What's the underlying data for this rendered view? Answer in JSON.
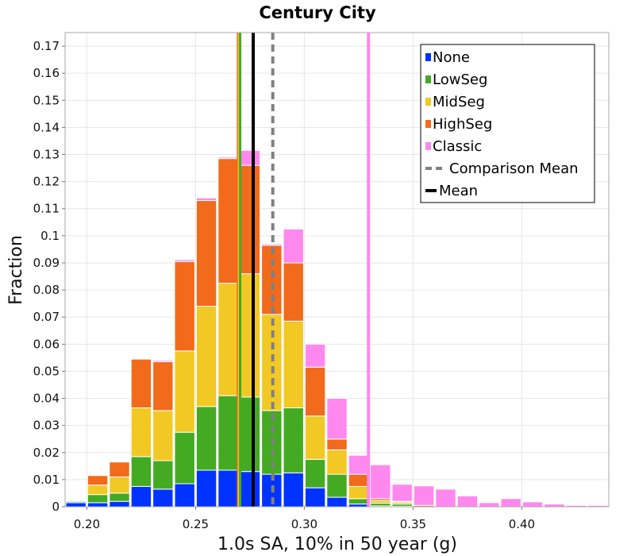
{
  "chart_data": {
    "type": "bar",
    "stacked": true,
    "title": "Century City",
    "xlabel": "1.0s SA, 10% in 50 year (g)",
    "ylabel": "Fraction",
    "xlim": [
      0.19,
      0.44
    ],
    "ylim": [
      0,
      0.175
    ],
    "bin_width": 0.01,
    "grid": true,
    "legend_position": "top-right",
    "x_ticks": [
      "0.20",
      "0.25",
      "0.30",
      "0.35",
      "0.40"
    ],
    "x_tick_values": [
      0.2,
      0.25,
      0.3,
      0.35,
      0.4
    ],
    "y_ticks": [
      "0",
      "0.01",
      "0.02",
      "0.03",
      "0.04",
      "0.05",
      "0.06",
      "0.07",
      "0.08",
      "0.09",
      "0.1",
      "0.11",
      "0.12",
      "0.13",
      "0.14",
      "0.15",
      "0.16",
      "0.17"
    ],
    "y_tick_values": [
      0,
      0.01,
      0.02,
      0.03,
      0.04,
      0.05,
      0.06,
      0.07,
      0.08,
      0.09,
      0.1,
      0.11,
      0.12,
      0.13,
      0.14,
      0.15,
      0.16,
      0.17
    ],
    "x": [
      0.195,
      0.205,
      0.215,
      0.225,
      0.235,
      0.245,
      0.255,
      0.265,
      0.275,
      0.285,
      0.295,
      0.305,
      0.315,
      0.325,
      0.335,
      0.345,
      0.355,
      0.365,
      0.375,
      0.385,
      0.395,
      0.405,
      0.415,
      0.425,
      0.435
    ],
    "series": [
      {
        "name": "None",
        "color": "#0033ff",
        "values": [
          0.0015,
          0.0015,
          0.002,
          0.0075,
          0.0065,
          0.0085,
          0.0135,
          0.0135,
          0.013,
          0.012,
          0.0125,
          0.007,
          0.0035,
          0.001,
          0.0003,
          0.0002,
          0,
          0,
          0,
          0,
          0,
          0,
          0,
          0,
          0
        ]
      },
      {
        "name": "LowSeg",
        "color": "#44aa22",
        "values": [
          0.0005,
          0.003,
          0.003,
          0.011,
          0.0105,
          0.019,
          0.0235,
          0.0275,
          0.0275,
          0.0235,
          0.024,
          0.0105,
          0.0085,
          0.002,
          0.001,
          0.0008,
          0,
          0,
          0,
          0,
          0,
          0,
          0,
          0,
          0
        ]
      },
      {
        "name": "MidSeg",
        "color": "#f2c825",
        "values": [
          0,
          0.0035,
          0.006,
          0.018,
          0.0185,
          0.03,
          0.037,
          0.0415,
          0.0455,
          0.0355,
          0.032,
          0.016,
          0.009,
          0.0045,
          0.001,
          0.0007,
          0,
          0,
          0,
          0,
          0,
          0,
          0,
          0,
          0
        ]
      },
      {
        "name": "HighSeg",
        "color": "#f26a1b",
        "values": [
          0.0002,
          0.0035,
          0.0055,
          0.018,
          0.018,
          0.033,
          0.039,
          0.046,
          0.04,
          0.0255,
          0.0215,
          0.018,
          0.004,
          0.0045,
          0.0007,
          0.0003,
          0.0005,
          0,
          0,
          0,
          0,
          0,
          0,
          0,
          0
        ]
      },
      {
        "name": "Classic",
        "color": "#ff88ee",
        "values": [
          0,
          0,
          0,
          0.0002,
          0.0005,
          0.0007,
          0.001,
          0.0005,
          0.0055,
          0.0005,
          0.0125,
          0.0085,
          0.015,
          0.007,
          0.0125,
          0.0063,
          0.0072,
          0.0065,
          0.004,
          0.0015,
          0.003,
          0.0018,
          0.001,
          0.0005,
          0.0005
        ]
      }
    ],
    "vertical_lines": [
      {
        "name": "HighSeg",
        "x": 0.2695,
        "color": "#f26a1b",
        "style": "solid",
        "width": 3
      },
      {
        "name": "MidSeg",
        "x": 0.27,
        "color": "#f2c825",
        "style": "solid",
        "width": 3
      },
      {
        "name": "LowSeg",
        "x": 0.2705,
        "color": "#44aa22",
        "style": "solid",
        "width": 3
      },
      {
        "name": "Classic",
        "x": 0.3295,
        "color": "#ff88ee",
        "style": "solid",
        "width": 4
      },
      {
        "name": "Comparison Mean",
        "x": 0.2855,
        "color": "#808080",
        "style": "dashed",
        "width": 4
      },
      {
        "name": "Mean",
        "x": 0.2765,
        "color": "#000000",
        "style": "solid",
        "width": 4
      }
    ],
    "legend": [
      {
        "label": "None",
        "color": "#0033ff",
        "kind": "box"
      },
      {
        "label": "LowSeg",
        "color": "#44aa22",
        "kind": "box"
      },
      {
        "label": "MidSeg",
        "color": "#f2c825",
        "kind": "box"
      },
      {
        "label": "HighSeg",
        "color": "#f26a1b",
        "kind": "box"
      },
      {
        "label": "Classic",
        "color": "#ff88ee",
        "kind": "box"
      },
      {
        "label": "Comparison Mean",
        "color": "#808080",
        "kind": "dashed-line"
      },
      {
        "label": "Mean",
        "color": "#000000",
        "kind": "solid-line"
      }
    ]
  }
}
